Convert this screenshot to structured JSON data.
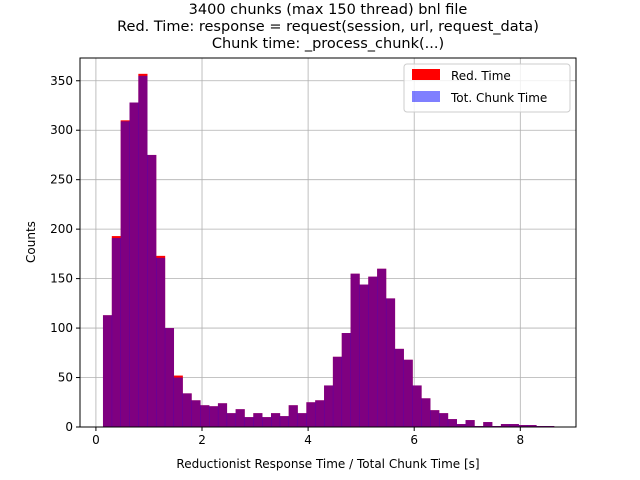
{
  "chart_data": {
    "type": "histogram",
    "title_lines": [
      "3400 chunks (max 150 thread) bnl file",
      "Red. Time: response = request(session, url, request_data)",
      "Chunk time: _process_chunk(...)"
    ],
    "xlabel": "Reductionist Response Time / Total Chunk Time [s]",
    "ylabel": "Counts",
    "xlim": [
      -0.3,
      9.05
    ],
    "ylim": [
      0,
      373
    ],
    "xticks": [
      0,
      2,
      4,
      6,
      8
    ],
    "yticks": [
      0,
      50,
      100,
      150,
      200,
      250,
      300,
      350
    ],
    "grid": true,
    "legend_position": "upper right",
    "bin_width": 0.1667,
    "bin_start": 0.133,
    "series": [
      {
        "name": "Red. Time",
        "color": "#ff0000",
        "alpha": 1.0,
        "values": [
          113,
          193,
          310,
          328,
          357,
          275,
          173,
          100,
          52,
          34,
          27,
          22,
          21,
          24,
          14,
          18,
          10,
          14,
          10,
          14,
          11,
          22,
          14,
          25,
          27,
          42,
          71,
          95,
          155,
          144,
          152,
          160,
          130,
          79,
          68,
          42,
          29,
          17,
          14,
          8,
          3,
          7,
          1,
          5,
          1,
          3,
          3,
          2,
          2,
          1,
          1
        ]
      },
      {
        "name": "Tot. Chunk Time",
        "color": "#0000ff",
        "alpha": 0.5,
        "values": [
          113,
          191,
          309,
          328,
          355,
          275,
          171,
          100,
          50,
          34,
          27,
          22,
          21,
          24,
          14,
          18,
          10,
          14,
          10,
          14,
          11,
          22,
          14,
          25,
          27,
          42,
          71,
          95,
          155,
          144,
          152,
          160,
          130,
          79,
          68,
          42,
          29,
          17,
          14,
          8,
          3,
          7,
          1,
          5,
          1,
          3,
          3,
          2,
          2,
          1,
          1
        ]
      }
    ]
  }
}
